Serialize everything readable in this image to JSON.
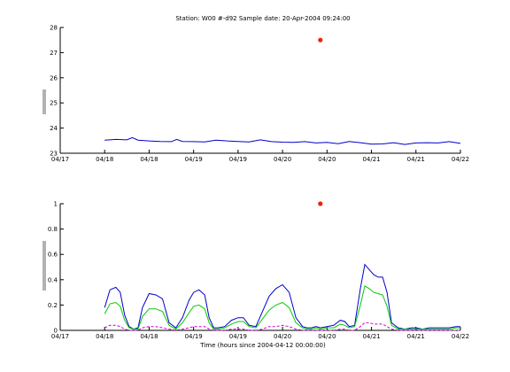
{
  "figure": {
    "title": "Station: W00 #-d92  Sample date: 20-Apr-2004 09:24:00",
    "xlabel": "Time (hours since 2004-04-12 00:00:00)"
  },
  "chart_data": [
    {
      "type": "line",
      "ylabel": "",
      "xlim": [
        0,
        9
      ],
      "ylim": [
        23,
        28
      ],
      "yticks": [
        23,
        24,
        25,
        26,
        27,
        28
      ],
      "xticks": [
        0,
        1,
        2,
        3,
        4,
        5,
        6,
        7,
        8,
        9
      ],
      "xtick_labels": [
        "04/17",
        "04/18",
        "04/18",
        "04/19",
        "04/19",
        "04/20",
        "04/20",
        "04/21",
        "04/21",
        "04/22"
      ],
      "grid": false,
      "series": [
        {
          "color": "#0000cc",
          "style": "solid",
          "x": [
            1.0,
            1.25,
            1.5,
            1.62,
            1.75,
            2.0,
            2.25,
            2.5,
            2.62,
            2.75,
            3.0,
            3.25,
            3.5,
            3.75,
            4.0,
            4.25,
            4.5,
            4.75,
            5.0,
            5.25,
            5.5,
            5.75,
            6.0,
            6.25,
            6.5,
            6.75,
            7.0,
            7.25,
            7.5,
            7.75,
            8.0,
            8.25,
            8.5,
            8.75,
            9.0
          ],
          "y": [
            23.52,
            23.55,
            23.53,
            23.62,
            23.52,
            23.49,
            23.47,
            23.46,
            23.55,
            23.47,
            23.46,
            23.45,
            23.52,
            23.49,
            23.47,
            23.45,
            23.53,
            23.46,
            23.44,
            23.43,
            23.46,
            23.41,
            23.43,
            23.38,
            23.47,
            23.42,
            23.36,
            23.37,
            23.42,
            23.35,
            23.41,
            23.42,
            23.41,
            23.46,
            23.39
          ]
        }
      ],
      "markers": [
        {
          "x": 5.85,
          "y": 27.5,
          "color": "#ee2200"
        }
      ]
    },
    {
      "type": "line",
      "ylabel": "",
      "xlim": [
        0,
        9
      ],
      "ylim": [
        0,
        1
      ],
      "yticks": [
        0,
        0.2,
        0.4,
        0.6,
        0.8,
        1
      ],
      "ytick_labels": [
        "0",
        "0.2",
        "0.4",
        "0.6",
        "0.8",
        "1"
      ],
      "xticks": [
        0,
        1,
        2,
        3,
        4,
        5,
        6,
        7,
        8,
        9
      ],
      "xtick_labels": [
        "04/17",
        "04/18",
        "04/18",
        "04/19",
        "04/19",
        "04/20",
        "04/20",
        "04/21",
        "04/21",
        "04/22"
      ],
      "grid": false,
      "series": [
        {
          "color": "#0000cc",
          "style": "solid",
          "x": [
            1.0,
            1.12,
            1.25,
            1.35,
            1.45,
            1.55,
            1.65,
            1.75,
            1.85,
            2.0,
            2.15,
            2.3,
            2.45,
            2.6,
            2.75,
            2.9,
            3.0,
            3.12,
            3.25,
            3.35,
            3.45,
            3.55,
            3.7,
            3.85,
            4.0,
            4.12,
            4.25,
            4.4,
            4.55,
            4.7,
            4.85,
            5.0,
            5.15,
            5.3,
            5.45,
            5.55,
            5.65,
            5.75,
            5.85,
            6.0,
            6.15,
            6.3,
            6.4,
            6.5,
            6.62,
            6.75,
            6.85,
            6.95,
            7.05,
            7.15,
            7.25,
            7.35,
            7.45,
            7.6,
            7.75,
            7.9,
            8.0,
            8.15,
            8.3,
            8.45,
            8.6,
            8.75,
            8.9,
            9.0
          ],
          "y": [
            0.18,
            0.32,
            0.34,
            0.3,
            0.12,
            0.03,
            0.01,
            0.02,
            0.18,
            0.29,
            0.28,
            0.25,
            0.06,
            0.02,
            0.1,
            0.24,
            0.3,
            0.32,
            0.28,
            0.1,
            0.02,
            0.02,
            0.03,
            0.08,
            0.1,
            0.1,
            0.04,
            0.03,
            0.15,
            0.27,
            0.33,
            0.36,
            0.3,
            0.1,
            0.03,
            0.02,
            0.02,
            0.03,
            0.02,
            0.03,
            0.04,
            0.08,
            0.07,
            0.03,
            0.04,
            0.33,
            0.52,
            0.48,
            0.44,
            0.42,
            0.42,
            0.3,
            0.06,
            0.02,
            0.01,
            0.02,
            0.02,
            0.01,
            0.02,
            0.02,
            0.02,
            0.02,
            0.03,
            0.03
          ]
        },
        {
          "color": "#00cc00",
          "style": "solid",
          "x": [
            1.0,
            1.12,
            1.25,
            1.35,
            1.45,
            1.55,
            1.65,
            1.75,
            1.85,
            2.0,
            2.15,
            2.3,
            2.45,
            2.6,
            2.75,
            2.9,
            3.0,
            3.12,
            3.25,
            3.35,
            3.45,
            3.55,
            3.7,
            3.85,
            4.0,
            4.12,
            4.25,
            4.4,
            4.55,
            4.7,
            4.85,
            5.0,
            5.15,
            5.3,
            5.45,
            5.55,
            5.65,
            5.75,
            5.85,
            6.0,
            6.15,
            6.3,
            6.4,
            6.5,
            6.62,
            6.75,
            6.85,
            6.95,
            7.05,
            7.15,
            7.25,
            7.35,
            7.45,
            7.6,
            7.75,
            7.9,
            8.0,
            8.15,
            8.3,
            8.45,
            8.6,
            8.75,
            8.9,
            9.0
          ],
          "y": [
            0.13,
            0.21,
            0.22,
            0.19,
            0.08,
            0.02,
            0.01,
            0.01,
            0.11,
            0.17,
            0.17,
            0.15,
            0.04,
            0.01,
            0.06,
            0.14,
            0.19,
            0.2,
            0.17,
            0.06,
            0.01,
            0.01,
            0.02,
            0.05,
            0.07,
            0.07,
            0.03,
            0.02,
            0.09,
            0.16,
            0.2,
            0.22,
            0.18,
            0.06,
            0.02,
            0.01,
            0.01,
            0.02,
            0.01,
            0.02,
            0.02,
            0.05,
            0.04,
            0.02,
            0.03,
            0.2,
            0.35,
            0.33,
            0.3,
            0.29,
            0.28,
            0.19,
            0.04,
            0.01,
            0.01,
            0.01,
            0.01,
            0.01,
            0.01,
            0.01,
            0.01,
            0.01,
            0.02,
            0.02
          ]
        },
        {
          "color": "#cc00cc",
          "style": "dashed",
          "x": [
            1.0,
            1.12,
            1.25,
            1.35,
            1.45,
            1.55,
            1.65,
            1.75,
            1.85,
            2.0,
            2.15,
            2.3,
            2.45,
            2.6,
            2.75,
            2.9,
            3.0,
            3.12,
            3.25,
            3.35,
            3.45,
            3.55,
            3.7,
            3.85,
            4.0,
            4.12,
            4.25,
            4.4,
            4.55,
            4.7,
            4.85,
            5.0,
            5.15,
            5.3,
            5.45,
            5.55,
            5.65,
            5.75,
            5.85,
            6.0,
            6.15,
            6.3,
            6.4,
            6.5,
            6.62,
            6.75,
            6.85,
            6.95,
            7.05,
            7.15,
            7.25,
            7.35,
            7.45,
            7.6,
            7.75,
            7.9,
            8.0,
            8.15,
            8.3,
            8.45,
            8.6,
            8.75,
            8.9,
            9.0
          ],
          "y": [
            0.02,
            0.04,
            0.04,
            0.03,
            0.01,
            0.0,
            0.0,
            0.0,
            0.02,
            0.03,
            0.03,
            0.02,
            0.01,
            0.0,
            0.01,
            0.02,
            0.03,
            0.03,
            0.03,
            0.01,
            0.0,
            0.0,
            0.0,
            0.01,
            0.01,
            0.01,
            0.0,
            0.0,
            0.01,
            0.03,
            0.03,
            0.04,
            0.03,
            0.01,
            0.0,
            0.0,
            0.0,
            0.0,
            0.0,
            0.0,
            0.0,
            0.01,
            0.01,
            0.0,
            0.0,
            0.03,
            0.06,
            0.06,
            0.05,
            0.05,
            0.05,
            0.03,
            0.01,
            0.0,
            0.0,
            0.0,
            0.0,
            0.0,
            0.0,
            0.0,
            0.0,
            0.0,
            0.0,
            0.0
          ]
        }
      ],
      "markers": [
        {
          "x": 5.85,
          "y": 1.0,
          "color": "#ee2200"
        }
      ]
    }
  ]
}
